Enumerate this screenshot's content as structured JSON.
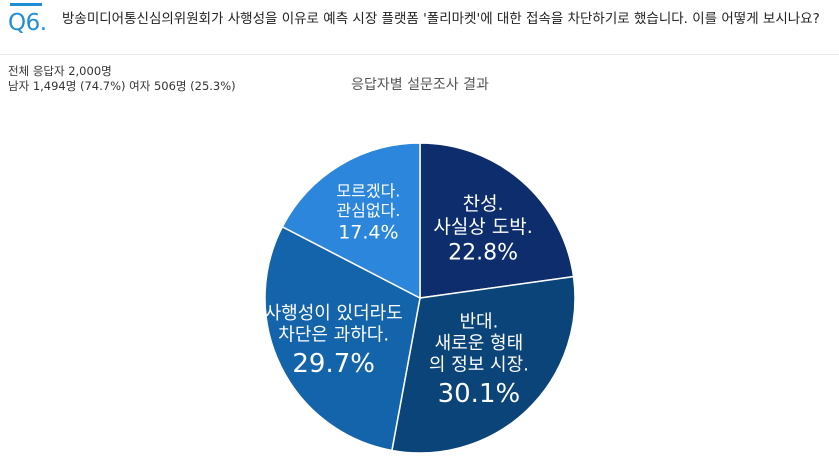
{
  "question": {
    "number": "Q6.",
    "text": "방송미디어통신심의위원회가 사행성을 이유로 예측 시장 플랫폼 '폴리마켓'에 대한 접속을 차단하기로 했습니다. 이를 어떻게 보시나요?"
  },
  "respondents": {
    "total": "전체 응답자 2,000명",
    "gender": "남자 1,494명 (74.7%) 여자 506명 (25.3%)"
  },
  "chart_data": {
    "type": "pie",
    "title": "응답자별 설문조사 결과",
    "slices": [
      {
        "lines": [
          "찬성.",
          "사실상 도박."
        ],
        "value": 22.8,
        "value_label": "22.8%",
        "color": "#0d2d6c"
      },
      {
        "lines": [
          "반대.",
          "새로운 형태",
          "의 정보 시장."
        ],
        "value": 30.1,
        "value_label": "30.1%",
        "color": "#0b4478"
      },
      {
        "lines": [
          "사행성이 있더라도",
          "차단은 과하다."
        ],
        "value": 29.7,
        "value_label": "29.7%",
        "color": "#1464ab"
      },
      {
        "lines": [
          "모르겠다.",
          "관심없다."
        ],
        "value": 17.4,
        "value_label": "17.4%",
        "color": "#2b86dc"
      }
    ],
    "start_angle": "12 o'clock",
    "direction": "clockwise",
    "legend": "none"
  }
}
